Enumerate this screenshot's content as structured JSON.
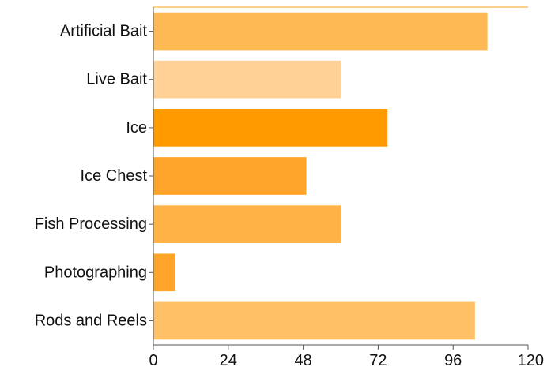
{
  "chart_data": {
    "type": "bar",
    "orientation": "horizontal",
    "categories": [
      "Artificial Bait",
      "Live Bait",
      "Ice",
      "Ice Chest",
      "Fish Processing",
      "Photographing",
      "Rods and Reels"
    ],
    "values": [
      107,
      60,
      75,
      49,
      60,
      7,
      103
    ],
    "colors": [
      "#FFB954",
      "#FFD196",
      "#FF9A00",
      "#FFA42A",
      "#FFB347",
      "#FFA42A",
      "#FFC066"
    ],
    "x_ticks": [
      "0",
      "24",
      "48",
      "72",
      "96",
      "120"
    ],
    "xlim": [
      0,
      120
    ],
    "title": "",
    "xlabel": "",
    "ylabel": "",
    "grid": false,
    "legend": "none"
  }
}
